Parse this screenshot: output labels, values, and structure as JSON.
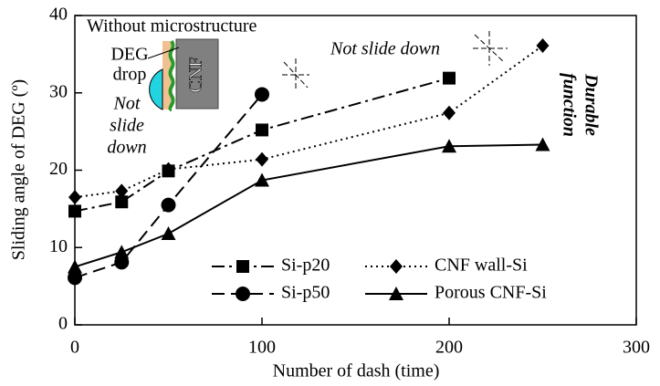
{
  "chart_data": {
    "type": "line",
    "xlabel": "Number of dash (time)",
    "ylabel": "Sliding angle of DEG (º)",
    "xlim": [
      0,
      300
    ],
    "xticks": [
      0,
      100,
      200,
      300
    ],
    "ylim": [
      0,
      40
    ],
    "yticks": [
      0,
      10,
      20,
      30,
      40
    ],
    "series": [
      {
        "name": "Si-p20",
        "color": "#000000",
        "line_style": "dashdot",
        "marker": "square",
        "x": [
          0,
          25,
          50,
          100,
          200
        ],
        "values": [
          14.7,
          15.9,
          19.9,
          25.2,
          31.9
        ]
      },
      {
        "name": "Si-p50",
        "color": "#000000",
        "line_style": "dashed",
        "marker": "circle",
        "x": [
          0,
          25,
          50,
          100
        ],
        "values": [
          6.1,
          8.1,
          15.5,
          29.8
        ]
      },
      {
        "name": "CNF wall-Si",
        "color": "#000000",
        "line_style": "dotted",
        "marker": "diamond",
        "x": [
          0,
          25,
          50,
          100,
          200,
          250
        ],
        "values": [
          16.5,
          17.3,
          20.1,
          21.4,
          27.4,
          36.1
        ]
      },
      {
        "name": "Porous CNF-Si",
        "color": "#000000",
        "line_style": "solid",
        "marker": "triangle",
        "x": [
          0,
          25,
          50,
          100,
          200,
          250
        ],
        "values": [
          7.5,
          9.4,
          11.8,
          18.7,
          23.1,
          23.3
        ]
      }
    ],
    "inset_title": "Without microstructure",
    "drop_label_lines": [
      "DEG",
      "drop"
    ],
    "wall_label": "CNF",
    "inset_note_lines": [
      "Not",
      "slide",
      "down"
    ],
    "note": "Not slide down",
    "durable_lines": [
      "Durable",
      "function"
    ]
  }
}
